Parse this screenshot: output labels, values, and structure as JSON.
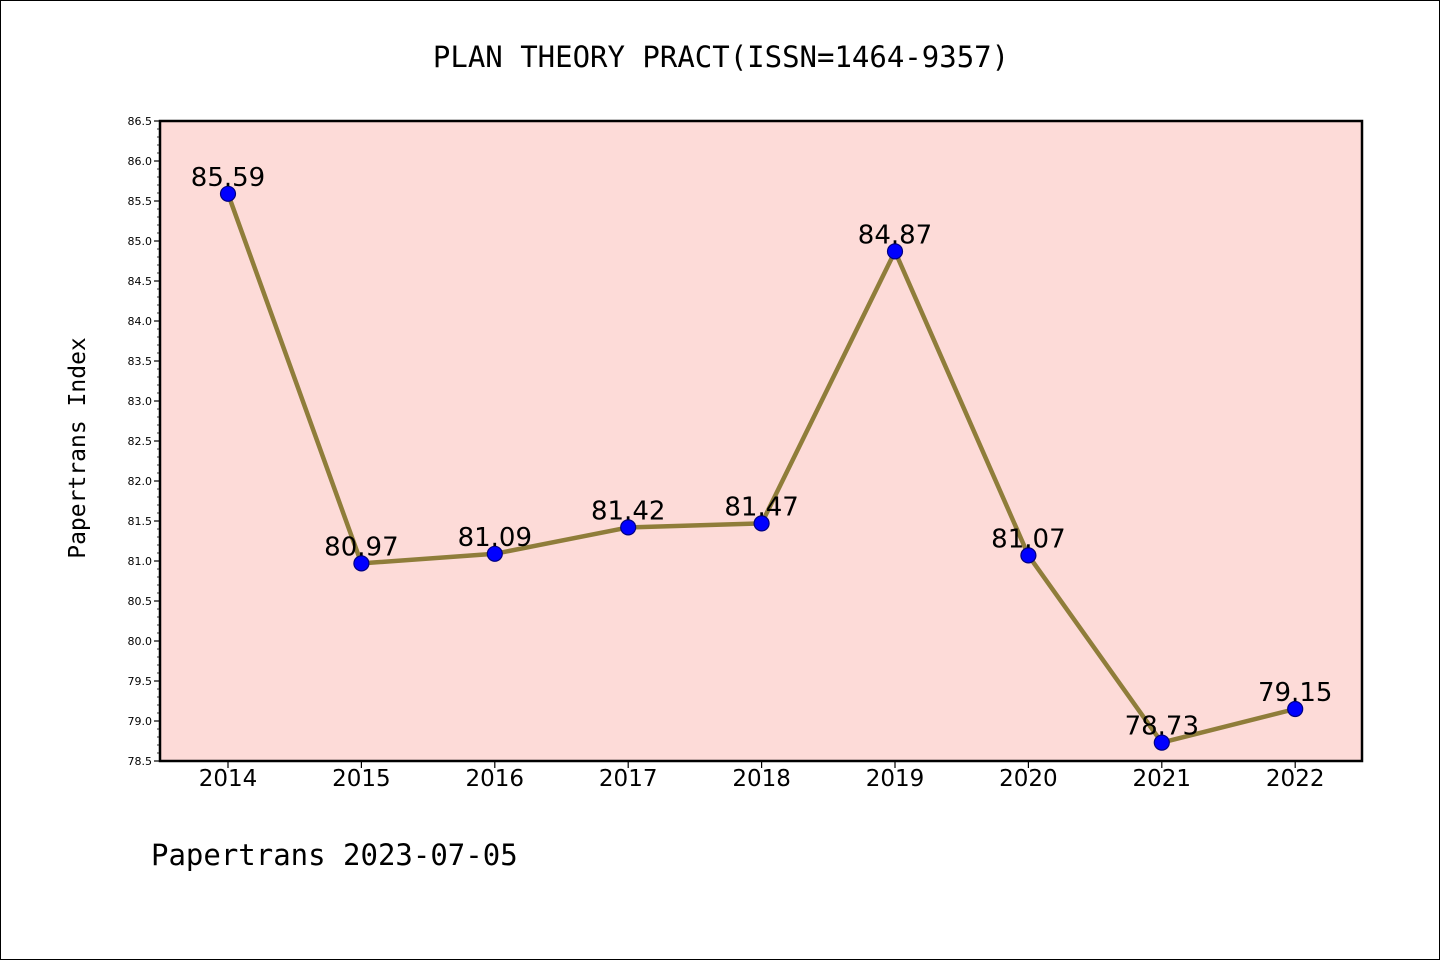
{
  "chart_data": {
    "type": "line",
    "title": "PLAN THEORY PRACT(ISSN=1464-9357)",
    "xlabel": "",
    "ylabel": "Papertrans Index",
    "categories": [
      "2014",
      "2015",
      "2016",
      "2017",
      "2018",
      "2019",
      "2020",
      "2021",
      "2022"
    ],
    "series": [
      {
        "values": [
          85.59,
          80.97,
          81.09,
          81.42,
          81.47,
          84.87,
          81.07,
          78.73,
          79.15
        ]
      }
    ],
    "data_labels": [
      "85.59",
      "80.97",
      "81.09",
      "81.42",
      "81.47",
      "84.87",
      "81.07",
      "78.73",
      "79.15"
    ],
    "ylim": [
      78.5,
      86.5
    ],
    "yticks": [
      "78.5",
      "79.0",
      "79.5",
      "80.0",
      "80.5",
      "81.0",
      "81.5",
      "82.0",
      "82.5",
      "83.0",
      "83.5",
      "84.0",
      "84.5",
      "85.0",
      "85.5",
      "86.0",
      "86.5"
    ],
    "grid": false,
    "colors": {
      "plot_background": "#fddbd8",
      "line": "#8f7d3a",
      "marker": "#0000ff",
      "marker_edge": "#000080"
    }
  },
  "footer": {
    "text": "Papertrans 2023-07-05"
  }
}
